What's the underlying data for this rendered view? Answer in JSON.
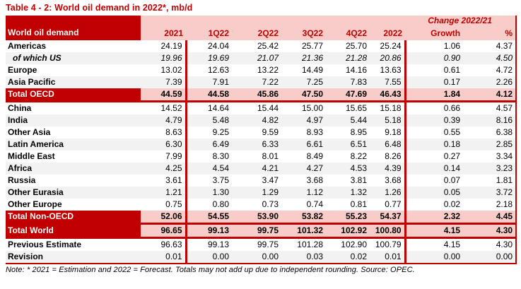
{
  "title": "Table 4 - 2: World oil demand in 2022*, mb/d",
  "note": "Note: * 2021 = Estimation and 2022 = Forecast. Totals may not add up due to independent rounding. Source: OPEC.",
  "colors": {
    "accent_dark_red": "#C00000",
    "header_pink": "#F8CCC9",
    "stripe_gray": "#F2F2F2"
  },
  "table": {
    "corner_label": "World oil demand",
    "change_header": "Change 2022/21",
    "columns": [
      "2021",
      "1Q22",
      "2Q22",
      "3Q22",
      "4Q22",
      "2022",
      "Growth",
      "%"
    ],
    "rows": [
      {
        "label": "Americas",
        "kind": "data",
        "shade": false,
        "italic": false,
        "values": [
          "24.19",
          "24.04",
          "25.42",
          "25.77",
          "25.70",
          "25.24",
          "1.06",
          "4.37"
        ]
      },
      {
        "label": "of which US",
        "kind": "data",
        "shade": true,
        "italic": true,
        "values": [
          "19.96",
          "19.69",
          "21.07",
          "21.36",
          "21.28",
          "20.86",
          "0.90",
          "4.50"
        ]
      },
      {
        "label": "Europe",
        "kind": "data",
        "shade": false,
        "italic": false,
        "values": [
          "13.02",
          "12.63",
          "13.22",
          "14.49",
          "14.16",
          "13.63",
          "0.61",
          "4.72"
        ]
      },
      {
        "label": "Asia Pacific",
        "kind": "data",
        "shade": true,
        "italic": false,
        "values": [
          "7.39",
          "7.91",
          "7.22",
          "7.25",
          "7.83",
          "7.55",
          "0.17",
          "2.26"
        ]
      },
      {
        "label": "Total OECD",
        "kind": "total",
        "shade": false,
        "italic": false,
        "values": [
          "44.59",
          "44.58",
          "45.86",
          "47.50",
          "47.69",
          "46.43",
          "1.84",
          "4.12"
        ]
      },
      {
        "label": "China",
        "kind": "data",
        "shade": false,
        "italic": false,
        "values": [
          "14.52",
          "14.64",
          "15.44",
          "15.00",
          "15.65",
          "15.18",
          "0.66",
          "4.57"
        ]
      },
      {
        "label": "India",
        "kind": "data",
        "shade": true,
        "italic": false,
        "values": [
          "4.79",
          "5.48",
          "4.82",
          "4.97",
          "5.44",
          "5.18",
          "0.39",
          "8.16"
        ]
      },
      {
        "label": "Other Asia",
        "kind": "data",
        "shade": false,
        "italic": false,
        "values": [
          "8.63",
          "9.25",
          "9.59",
          "8.93",
          "8.95",
          "9.18",
          "0.55",
          "6.38"
        ]
      },
      {
        "label": "Latin America",
        "kind": "data",
        "shade": true,
        "italic": false,
        "values": [
          "6.30",
          "6.49",
          "6.33",
          "6.61",
          "6.51",
          "6.48",
          "0.18",
          "2.85"
        ]
      },
      {
        "label": "Middle East",
        "kind": "data",
        "shade": false,
        "italic": false,
        "values": [
          "7.99",
          "8.30",
          "8.01",
          "8.49",
          "8.22",
          "8.26",
          "0.27",
          "3.34"
        ]
      },
      {
        "label": "Africa",
        "kind": "data",
        "shade": true,
        "italic": false,
        "values": [
          "4.25",
          "4.54",
          "4.21",
          "4.27",
          "4.53",
          "4.39",
          "0.14",
          "3.23"
        ]
      },
      {
        "label": "Russia",
        "kind": "data",
        "shade": false,
        "italic": false,
        "values": [
          "3.61",
          "3.75",
          "3.47",
          "3.68",
          "3.81",
          "3.68",
          "0.07",
          "1.81"
        ]
      },
      {
        "label": "Other Eurasia",
        "kind": "data",
        "shade": true,
        "italic": false,
        "values": [
          "1.21",
          "1.30",
          "1.29",
          "1.12",
          "1.32",
          "1.26",
          "0.05",
          "3.72"
        ]
      },
      {
        "label": "Other Europe",
        "kind": "data",
        "shade": false,
        "italic": false,
        "values": [
          "0.75",
          "0.80",
          "0.73",
          "0.74",
          "0.81",
          "0.77",
          "0.02",
          "2.18"
        ]
      },
      {
        "label": "Total Non-OECD",
        "kind": "total",
        "shade": false,
        "italic": false,
        "values": [
          "52.06",
          "54.55",
          "53.90",
          "53.82",
          "55.23",
          "54.37",
          "2.32",
          "4.45"
        ]
      },
      {
        "label": "Total World",
        "kind": "total",
        "shade": false,
        "italic": false,
        "values": [
          "96.65",
          "99.13",
          "99.75",
          "101.32",
          "102.92",
          "100.80",
          "4.15",
          "4.30"
        ]
      },
      {
        "label": "Previous Estimate",
        "kind": "data",
        "shade": false,
        "italic": false,
        "values": [
          "96.63",
          "99.13",
          "99.75",
          "101.28",
          "102.90",
          "100.79",
          "4.15",
          "4.30"
        ]
      },
      {
        "label": "Revision",
        "kind": "data",
        "shade": true,
        "italic": false,
        "values": [
          "0.01",
          "0.00",
          "0.00",
          "0.03",
          "0.02",
          "0.01",
          "0.00",
          "0.00"
        ]
      }
    ]
  }
}
